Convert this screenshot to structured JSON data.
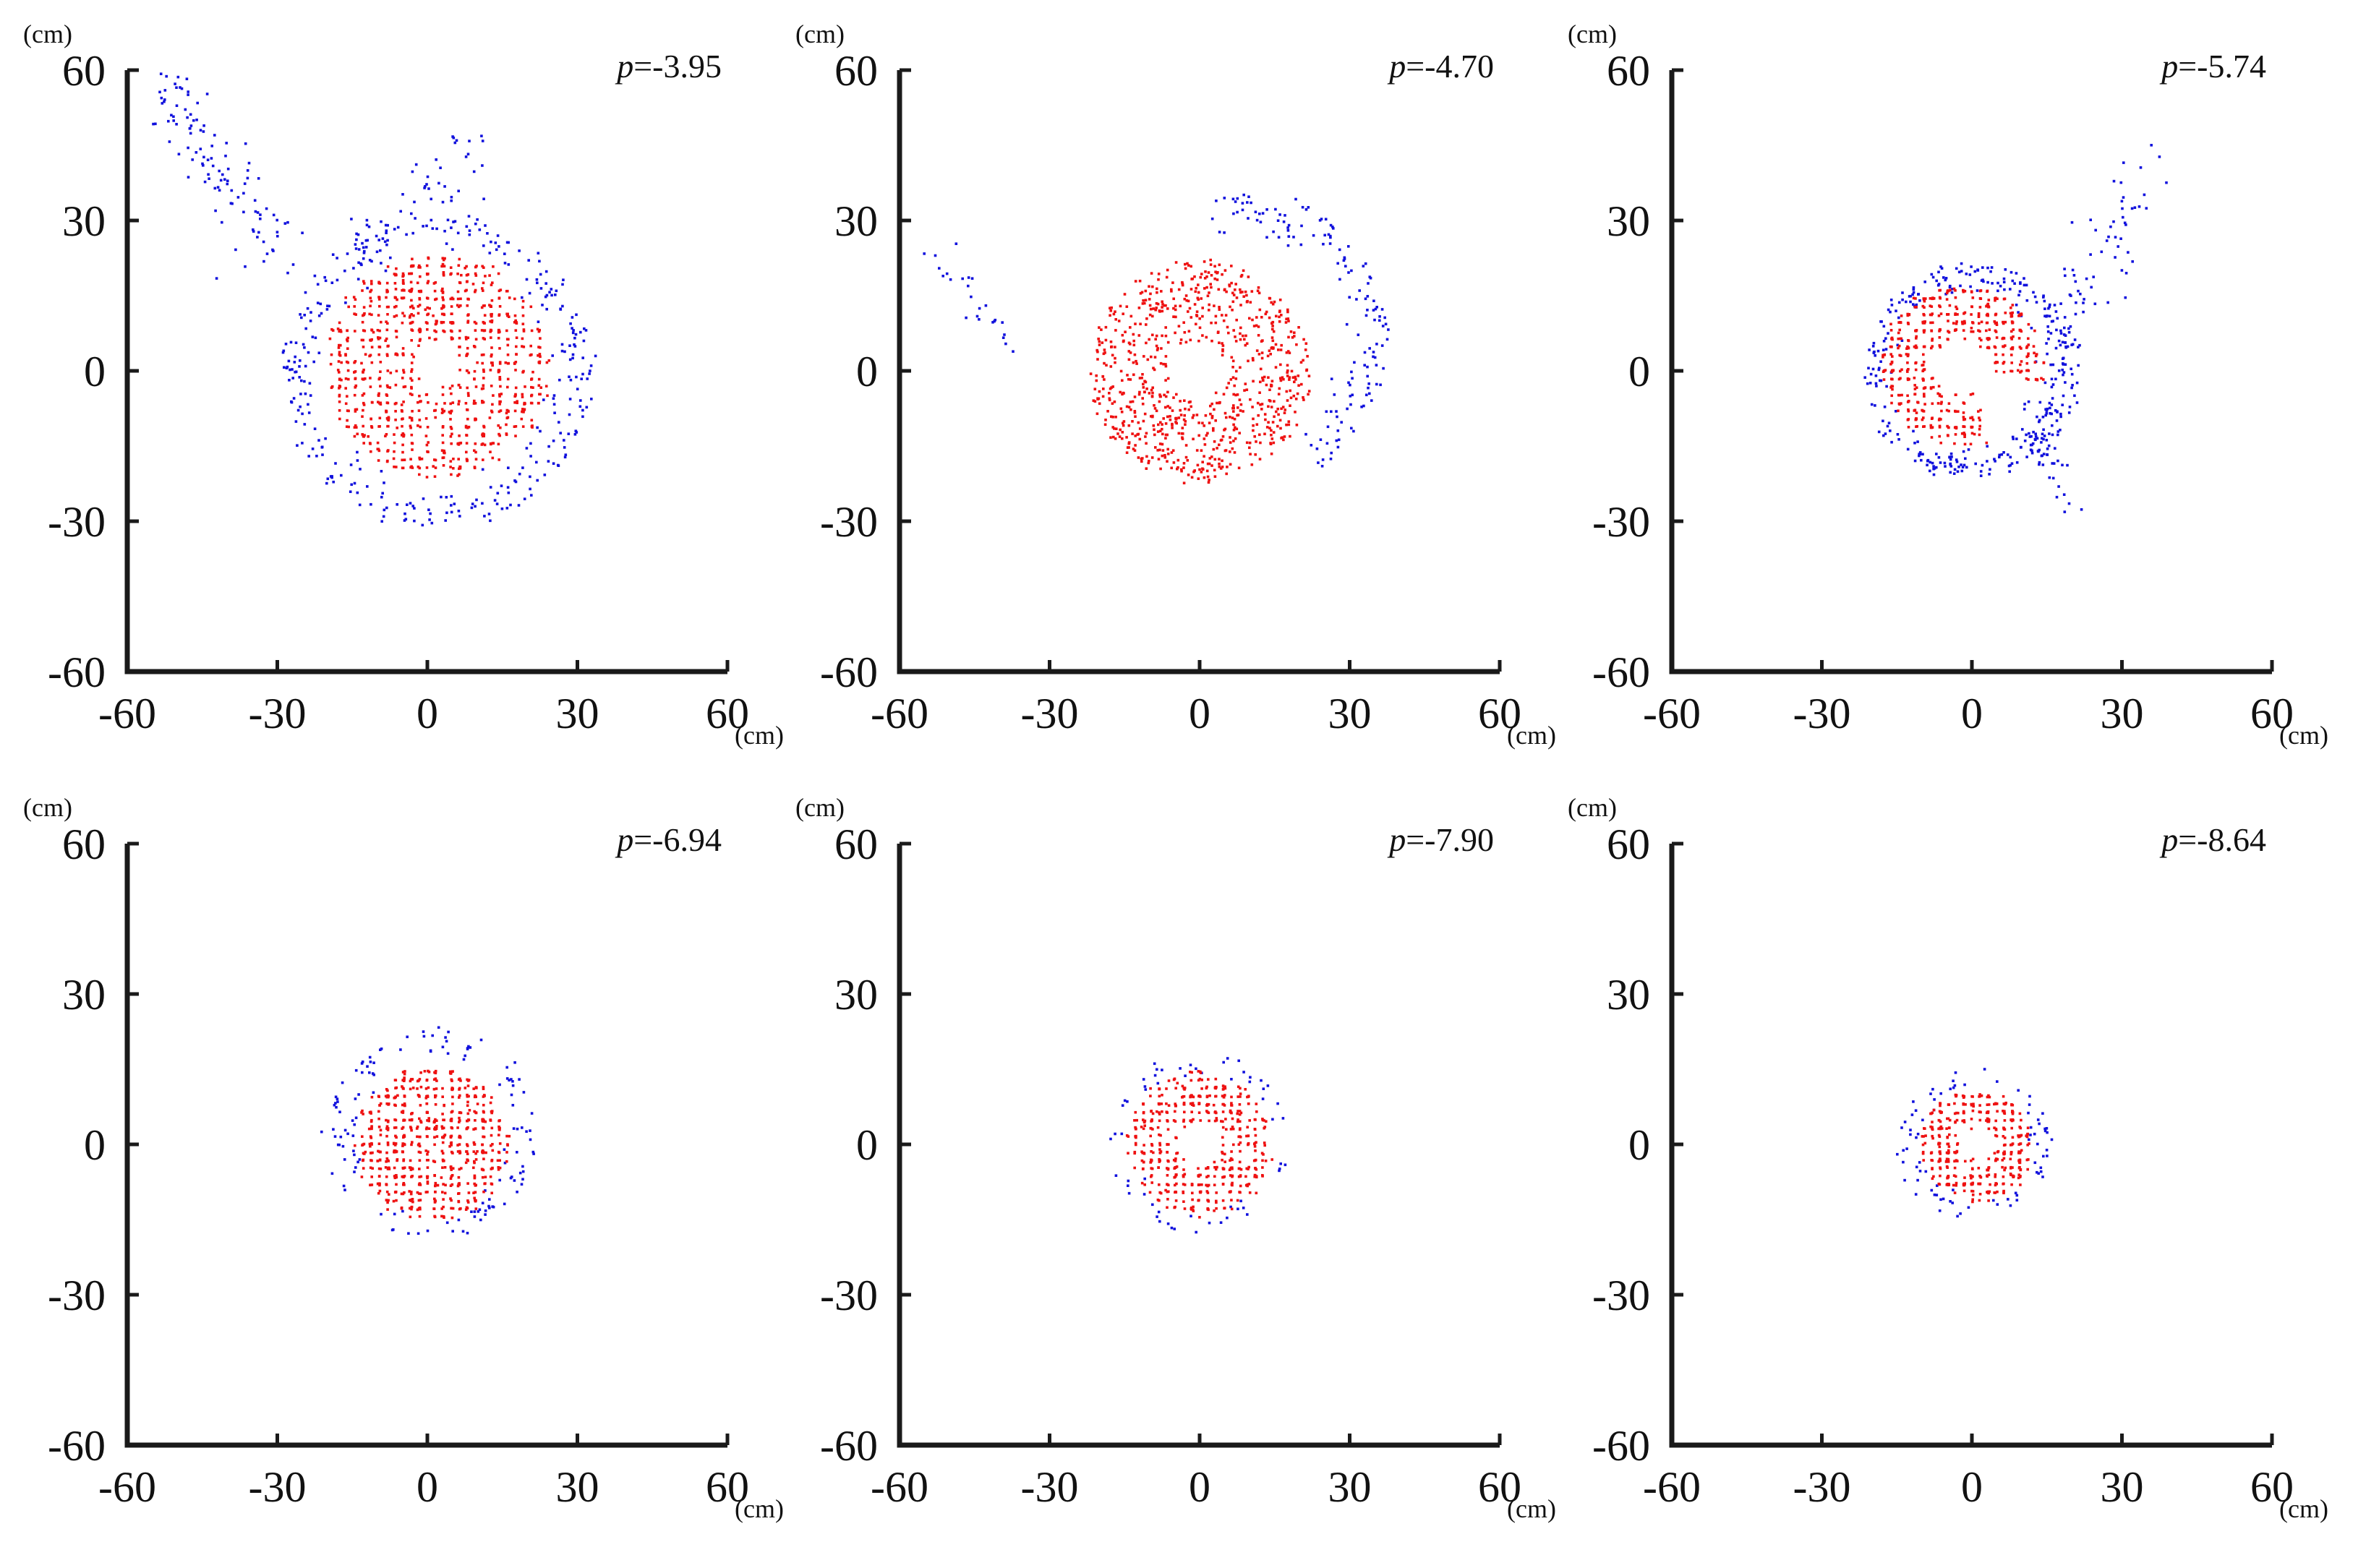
{
  "colors": {
    "inner": "#ee1111",
    "outer": "#1111dd",
    "axis": "#1a1a1a"
  },
  "chart_data": [
    {
      "type": "scatter",
      "annotation": "p=-3.95",
      "unit": "(cm)",
      "xlim": [
        -60,
        60
      ],
      "ylim": [
        -60,
        60
      ],
      "xticks": [
        "-60",
        "-30",
        "0",
        "30",
        "60"
      ],
      "yticks": [
        "60",
        "30",
        "0",
        "-30",
        "-60"
      ],
      "grid": false,
      "clusters": {
        "inner": {
          "cx": 2,
          "cy": 1,
          "r_in": 5,
          "r_out": 22,
          "n": 900,
          "gridded": true
        },
        "outer": {
          "cx": 2,
          "cy": 0,
          "r_in": 22,
          "r_out": 31,
          "n": 320
        },
        "streaks": [
          {
            "x": [
              -53,
              -29
            ],
            "y": [
              58,
              22
            ],
            "spread": 5,
            "n": 110
          },
          {
            "x": [
              -12,
              10
            ],
            "y": [
              24,
              45
            ],
            "spread": 4,
            "n": 55
          }
        ]
      }
    },
    {
      "type": "scatter",
      "annotation": "p=-4.70",
      "unit": "(cm)",
      "xlim": [
        -60,
        60
      ],
      "ylim": [
        -60,
        60
      ],
      "xticks": [
        "-60",
        "-30",
        "0",
        "30",
        "60"
      ],
      "yticks": [
        "60",
        "30",
        "0",
        "-30",
        "-60"
      ],
      "grid": false,
      "clusters": {
        "inner": {
          "cx": 0,
          "cy": 0,
          "r_in": 6,
          "r_out": 22,
          "n": 800,
          "gridded": false
        },
        "outer": {
          "cx": 8,
          "cy": 6,
          "r_in": 20,
          "r_out": 30,
          "n": 150,
          "arc": [
            -60,
            100
          ]
        },
        "streaks": [
          {
            "x": [
              -55,
              -37
            ],
            "y": [
              25,
              4
            ],
            "spread": 2,
            "n": 25
          }
        ]
      }
    },
    {
      "type": "scatter",
      "annotation": "p=-5.74",
      "unit": "(cm)",
      "xlim": [
        -60,
        60
      ],
      "ylim": [
        -60,
        60
      ],
      "xticks": [
        "-60",
        "-30",
        "0",
        "30",
        "60"
      ],
      "yticks": [
        "60",
        "30",
        "0",
        "-30",
        "-60"
      ],
      "grid": false,
      "clusters": {
        "inner": {
          "cx": -2,
          "cy": 1,
          "r_in": 6,
          "r_out": 16,
          "n": 600,
          "gridded": true,
          "gap": [
            -70,
            -10
          ]
        },
        "outer": {
          "cx": 0,
          "cy": 0,
          "r_in": 15,
          "r_out": 21,
          "n": 320
        },
        "streaks": [
          {
            "x": [
              14,
              35
            ],
            "y": [
              2,
              36
            ],
            "spread": 5,
            "n": 70
          },
          {
            "x": [
              10,
              20
            ],
            "y": [
              -8,
              -25
            ],
            "spread": 3,
            "n": 40
          }
        ]
      }
    },
    {
      "type": "scatter",
      "annotation": "p=-6.94",
      "unit": "(cm)",
      "xlim": [
        -60,
        60
      ],
      "ylim": [
        -60,
        60
      ],
      "xticks": [
        "-60",
        "-30",
        "0",
        "30",
        "60"
      ],
      "yticks": [
        "60",
        "30",
        "0",
        "-30",
        "-60"
      ],
      "grid": false,
      "clusters": {
        "inner": {
          "cx": 1,
          "cy": 0,
          "r_in": 0,
          "r_out": 15,
          "n": 650,
          "gridded": true
        },
        "outer": {
          "cx": 1,
          "cy": 2,
          "r_in": 14,
          "r_out": 21,
          "n": 130
        },
        "streaks": []
      }
    },
    {
      "type": "scatter",
      "annotation": "p=-7.90",
      "unit": "(cm)",
      "xlim": [
        -60,
        60
      ],
      "ylim": [
        -60,
        60
      ],
      "xticks": [
        "-60",
        "-30",
        "0",
        "30",
        "60"
      ],
      "yticks": [
        "60",
        "30",
        "0",
        "-30",
        "-60"
      ],
      "grid": false,
      "clusters": {
        "inner": {
          "cx": 0,
          "cy": 0,
          "r_in": 5,
          "r_out": 14,
          "n": 480,
          "gridded": true
        },
        "outer": {
          "cx": 0,
          "cy": 0,
          "r_in": 13,
          "r_out": 18,
          "n": 60
        },
        "streaks": []
      }
    },
    {
      "type": "scatter",
      "annotation": "p=-8.64",
      "unit": "(cm)",
      "xlim": [
        -60,
        60
      ],
      "ylim": [
        -60,
        60
      ],
      "xticks": [
        "-60",
        "-30",
        "0",
        "30",
        "60"
      ],
      "yticks": [
        "60",
        "30",
        "0",
        "-30",
        "-60"
      ],
      "grid": false,
      "clusters": {
        "inner": {
          "cx": 1,
          "cy": 0,
          "r_in": 4,
          "r_out": 11,
          "n": 380,
          "gridded": true
        },
        "outer": {
          "cx": 1,
          "cy": 0,
          "r_in": 10,
          "r_out": 15,
          "n": 80
        },
        "streaks": []
      }
    }
  ]
}
